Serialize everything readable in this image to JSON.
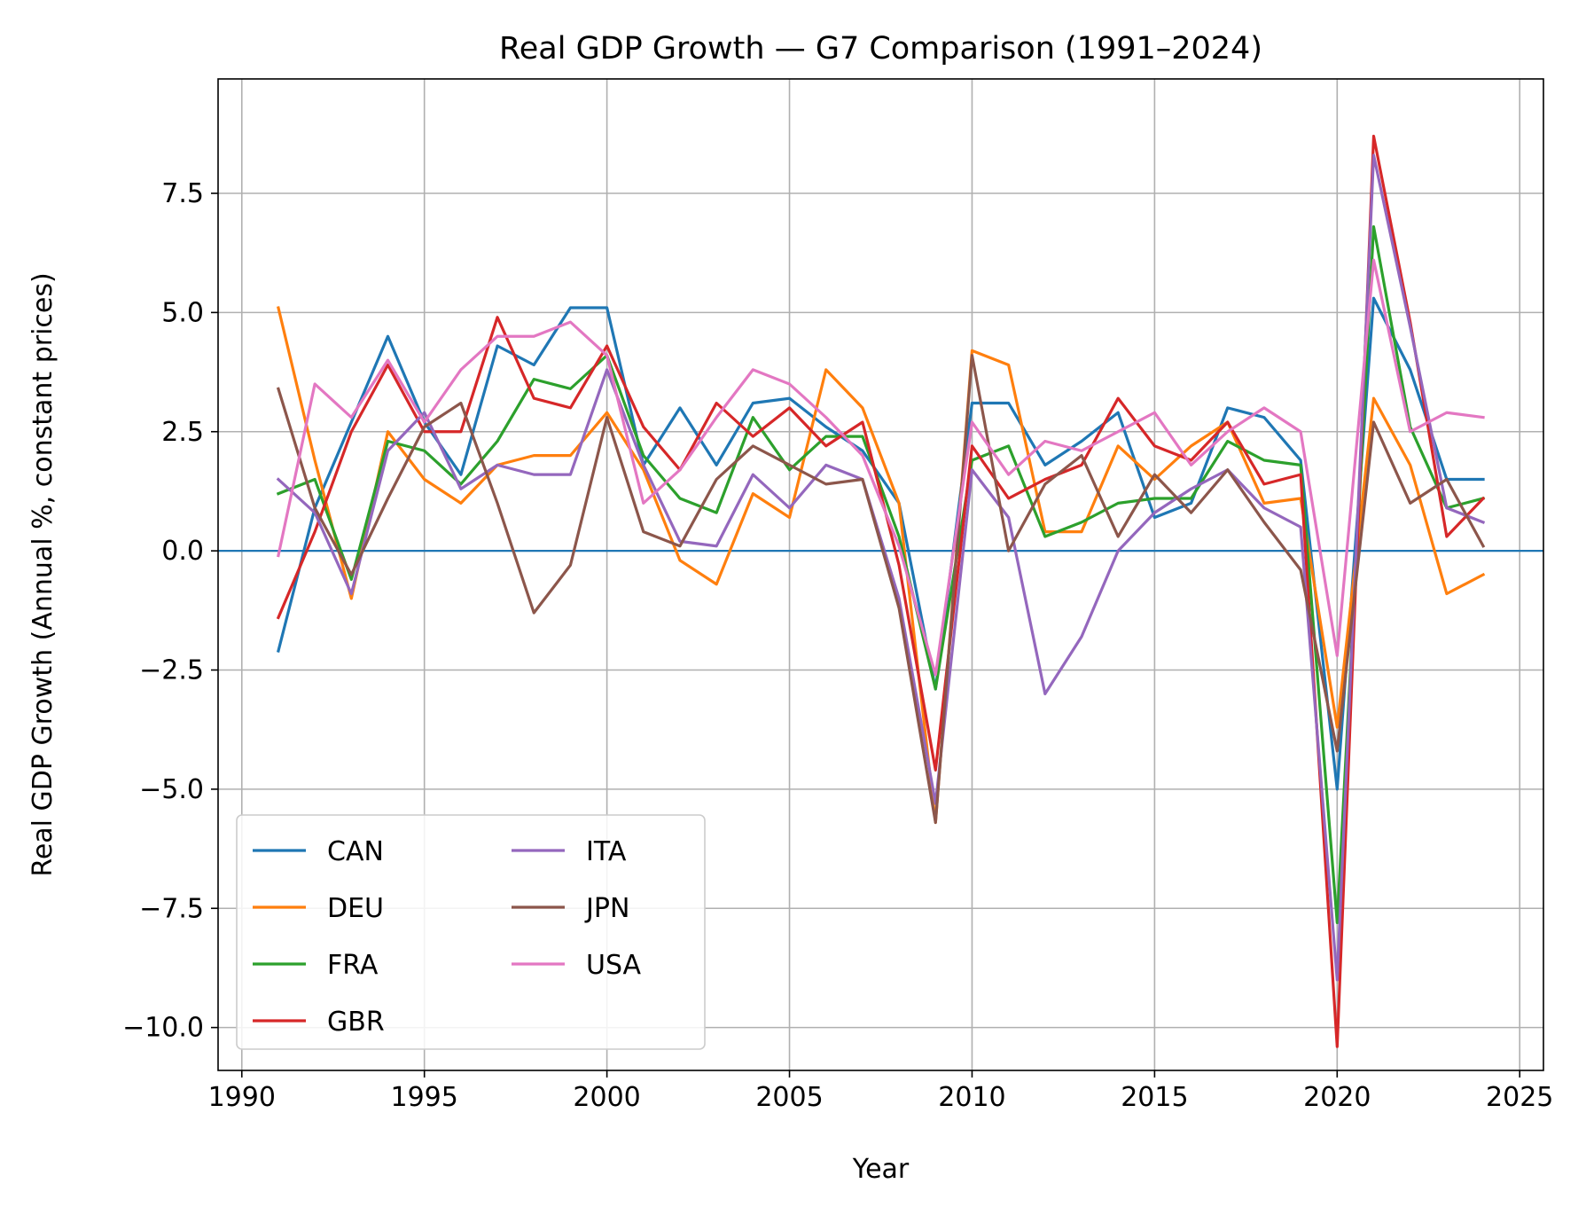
{
  "chart_data": {
    "type": "line",
    "title": "Real GDP Growth — G7 Comparison (1991–2024)",
    "xlabel": "Year",
    "ylabel": "Real GDP Growth (Annual %, constant prices)",
    "xlim": [
      1989.35,
      2025.65
    ],
    "ylim": [
      -10.9,
      9.9
    ],
    "x_ticks": [
      1990,
      1995,
      2000,
      2005,
      2010,
      2015,
      2020,
      2025
    ],
    "x_tick_labels": [
      "1990",
      "1995",
      "2000",
      "2005",
      "2010",
      "2015",
      "2020",
      "2025"
    ],
    "y_ticks": [
      -10,
      -7.5,
      -5,
      -2.5,
      0,
      2.5,
      5,
      7.5
    ],
    "y_tick_labels": [
      "−10.0",
      "−7.5",
      "−5.0",
      "−2.5",
      "0.0",
      "2.5",
      "5.0",
      "7.5"
    ],
    "grid": true,
    "reference_line": {
      "y": 0,
      "color": "#1f77b4"
    },
    "legend": {
      "placement": "lower-left",
      "columns": 2
    },
    "x": [
      1991,
      1992,
      1993,
      1994,
      1995,
      1996,
      1997,
      1998,
      1999,
      2000,
      2001,
      2002,
      2003,
      2004,
      2005,
      2006,
      2007,
      2008,
      2009,
      2010,
      2011,
      2012,
      2013,
      2014,
      2015,
      2016,
      2017,
      2018,
      2019,
      2020,
      2021,
      2022,
      2023,
      2024
    ],
    "series": [
      {
        "name": "CAN",
        "color": "#1f77b4",
        "values": [
          -2.1,
          0.9,
          2.7,
          4.5,
          2.7,
          1.6,
          4.3,
          3.9,
          5.1,
          5.1,
          1.8,
          3.0,
          1.8,
          3.1,
          3.2,
          2.6,
          2.1,
          1.0,
          -2.9,
          3.1,
          3.1,
          1.8,
          2.3,
          2.9,
          0.7,
          1.0,
          3.0,
          2.8,
          1.9,
          -5.0,
          5.3,
          3.8,
          1.5,
          1.5
        ]
      },
      {
        "name": "DEU",
        "color": "#ff7f0e",
        "values": [
          5.1,
          1.9,
          -1.0,
          2.5,
          1.5,
          1.0,
          1.8,
          2.0,
          2.0,
          2.9,
          1.7,
          -0.2,
          -0.7,
          1.2,
          0.7,
          3.8,
          3.0,
          1.0,
          -5.7,
          4.2,
          3.9,
          0.4,
          0.4,
          2.2,
          1.5,
          2.2,
          2.7,
          1.0,
          1.1,
          -3.7,
          3.2,
          1.8,
          -0.9,
          -0.5
        ]
      },
      {
        "name": "FRA",
        "color": "#2ca02c",
        "values": [
          1.2,
          1.5,
          -0.6,
          2.3,
          2.1,
          1.4,
          2.3,
          3.6,
          3.4,
          4.1,
          2.0,
          1.1,
          0.8,
          2.8,
          1.7,
          2.4,
          2.4,
          0.3,
          -2.9,
          1.9,
          2.2,
          0.3,
          0.6,
          1.0,
          1.1,
          1.1,
          2.3,
          1.9,
          1.8,
          -7.8,
          6.8,
          2.6,
          0.9,
          1.1
        ]
      },
      {
        "name": "GBR",
        "color": "#d62728",
        "values": [
          -1.4,
          0.4,
          2.5,
          3.9,
          2.5,
          2.5,
          4.9,
          3.2,
          3.0,
          4.3,
          2.6,
          1.7,
          3.1,
          2.4,
          3.0,
          2.2,
          2.7,
          -0.3,
          -4.6,
          2.2,
          1.1,
          1.5,
          1.8,
          3.2,
          2.2,
          1.9,
          2.7,
          1.4,
          1.6,
          -10.4,
          8.7,
          4.8,
          0.3,
          1.1
        ]
      },
      {
        "name": "ITA",
        "color": "#9467bd",
        "values": [
          1.5,
          0.8,
          -0.9,
          2.1,
          2.9,
          1.3,
          1.8,
          1.6,
          1.6,
          3.8,
          1.8,
          0.2,
          0.1,
          1.6,
          0.9,
          1.8,
          1.5,
          -1.0,
          -5.3,
          1.7,
          0.7,
          -3.0,
          -1.8,
          0.0,
          0.8,
          1.3,
          1.7,
          0.9,
          0.5,
          -9.0,
          8.3,
          4.7,
          0.9,
          0.6
        ]
      },
      {
        "name": "JPN",
        "color": "#8c564b",
        "values": [
          3.4,
          0.9,
          -0.5,
          1.1,
          2.6,
          3.1,
          1.0,
          -1.3,
          -0.3,
          2.8,
          0.4,
          0.1,
          1.5,
          2.2,
          1.8,
          1.4,
          1.5,
          -1.2,
          -5.7,
          4.1,
          0.0,
          1.4,
          2.0,
          0.3,
          1.6,
          0.8,
          1.7,
          0.6,
          -0.4,
          -4.2,
          2.7,
          1.0,
          1.5,
          0.1
        ]
      },
      {
        "name": "USA",
        "color": "#e377c2",
        "values": [
          -0.1,
          3.5,
          2.8,
          4.0,
          2.7,
          3.8,
          4.5,
          4.5,
          4.8,
          4.1,
          1.0,
          1.7,
          2.8,
          3.8,
          3.5,
          2.8,
          2.0,
          0.1,
          -2.6,
          2.7,
          1.6,
          2.3,
          2.1,
          2.5,
          2.9,
          1.8,
          2.5,
          3.0,
          2.5,
          -2.2,
          6.1,
          2.5,
          2.9,
          2.8
        ]
      }
    ]
  }
}
